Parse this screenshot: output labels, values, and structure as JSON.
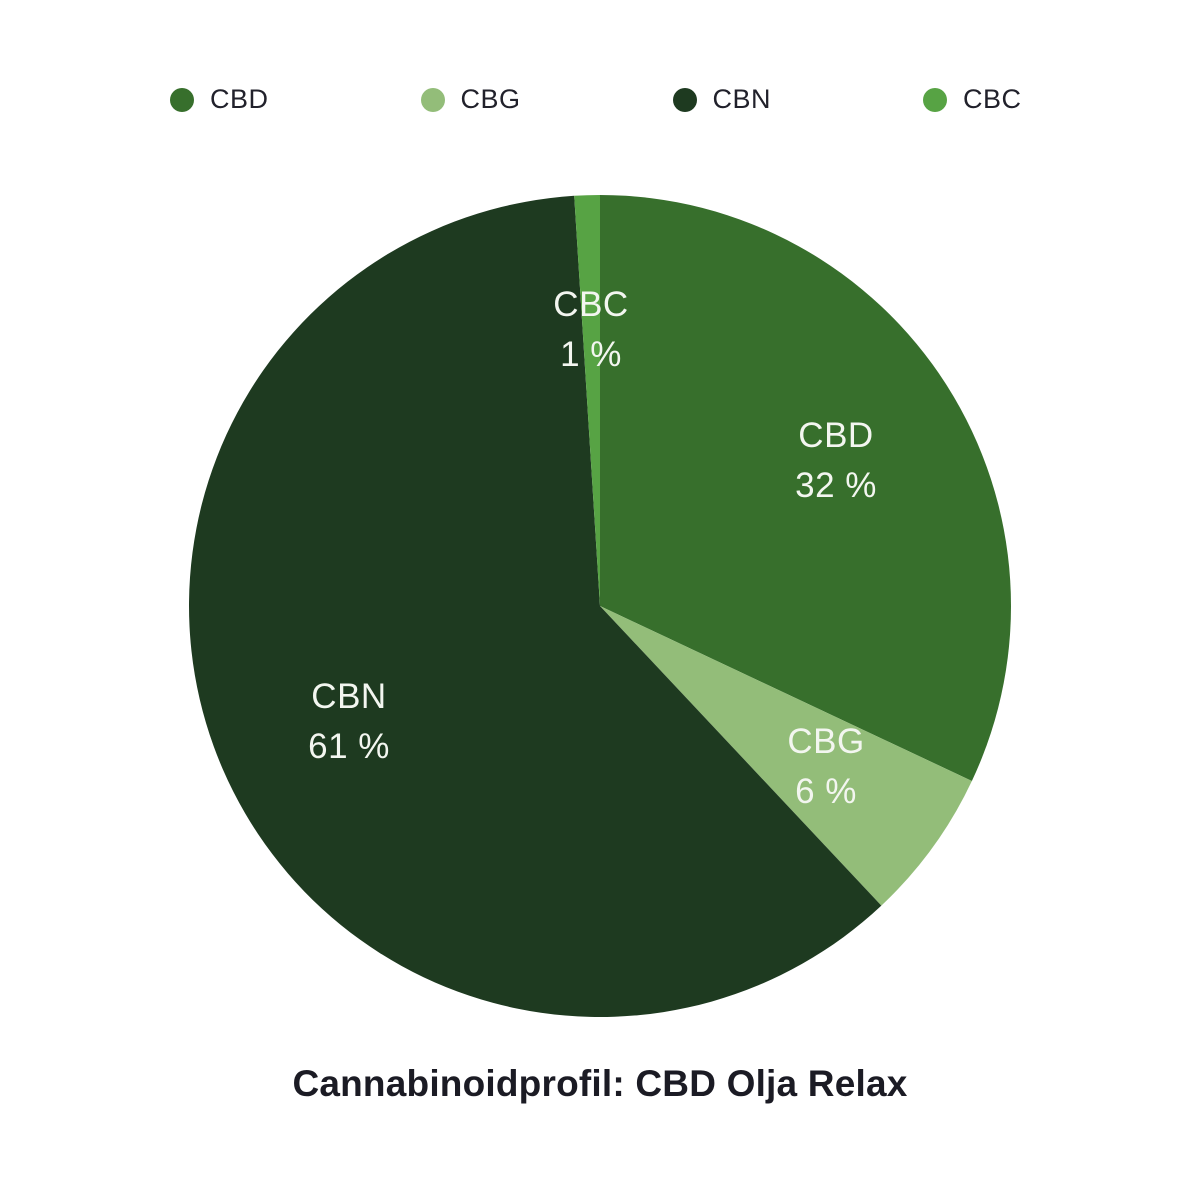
{
  "title": {
    "text": "Cannabinoidprofil: CBD Olja Relax"
  },
  "legend": {
    "position": "top",
    "items": [
      {
        "label": "CBD",
        "color": "#376f2c"
      },
      {
        "label": "CBG",
        "color": "#93bd79"
      },
      {
        "label": "CBN",
        "color": "#1e3a20"
      },
      {
        "label": "CBC",
        "color": "#57a344"
      }
    ]
  },
  "chart_data": {
    "type": "pie",
    "title": "Cannabinoidprofil: CBD Olja Relax",
    "categories": [
      "CBD",
      "CBG",
      "CBN",
      "CBC"
    ],
    "values": [
      32,
      6,
      61,
      1
    ],
    "unit": "%",
    "colors": {
      "CBD": "#376f2c",
      "CBG": "#93bd79",
      "CBN": "#1e3a20",
      "CBC": "#57a344"
    },
    "start_angle_deg": 0,
    "direction": "clockwise",
    "legend_position": "top",
    "label_color": "#f3f6f0",
    "slice_labels": [
      {
        "name": "CBD",
        "value_label": "32 %"
      },
      {
        "name": "CBG",
        "value_label": "6 %"
      },
      {
        "name": "CBN",
        "value_label": "61 %"
      },
      {
        "name": "CBC",
        "value_label": "1 %"
      }
    ]
  }
}
